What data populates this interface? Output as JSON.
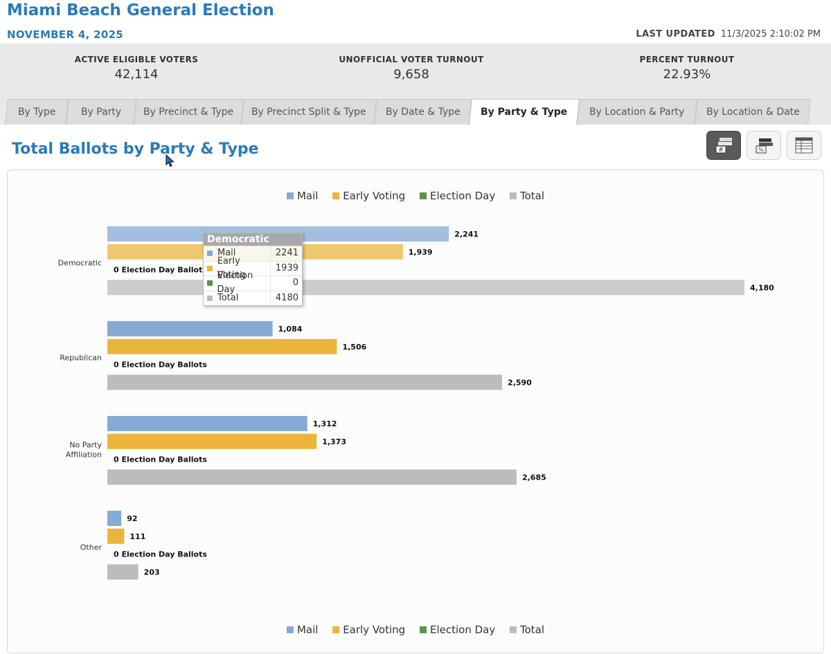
{
  "header": {
    "title": "Miami Beach General Election",
    "date": "NOVEMBER 4, 2025",
    "last_updated_label": "LAST UPDATED",
    "last_updated_value": "11/3/2025 2:10:02 PM"
  },
  "stats": {
    "eligible_label": "ACTIVE ELIGIBLE VOTERS",
    "eligible_value": "42,114",
    "turnout_label": "UNOFFICIAL VOTER TURNOUT",
    "turnout_value": "9,658",
    "percent_label": "PERCENT TURNOUT",
    "percent_value": "22.93%"
  },
  "tabs": [
    {
      "label": "By Type"
    },
    {
      "label": "By Party"
    },
    {
      "label": "By Precinct & Type"
    },
    {
      "label": "By Precinct Split & Type"
    },
    {
      "label": "By Date & Type"
    },
    {
      "label": "By Party & Type"
    },
    {
      "label": "By Location & Party"
    },
    {
      "label": "By Location & Date"
    }
  ],
  "active_tab": "By Party & Type",
  "section_title": "Total Ballots by Party & Type",
  "view_icons": [
    "count-view-icon",
    "percent-view-icon",
    "table-view-icon"
  ],
  "legend": [
    {
      "name": "Mail",
      "color": "#85abd4"
    },
    {
      "name": "Early Voting",
      "color": "#ebb53c"
    },
    {
      "name": "Election Day",
      "color": "#5f9247"
    },
    {
      "name": "Total",
      "color": "#bcbcbc"
    }
  ],
  "chart_data": {
    "type": "bar",
    "orientation": "horizontal",
    "categories": [
      "Democratic",
      "Republican",
      "No Party Affiliation",
      "Other"
    ],
    "series": [
      {
        "name": "Mail",
        "values": [
          2241,
          1084,
          1312,
          92
        ]
      },
      {
        "name": "Early Voting",
        "values": [
          1939,
          1506,
          1373,
          111
        ]
      },
      {
        "name": "Election Day",
        "values": [
          0,
          0,
          0,
          0
        ]
      },
      {
        "name": "Total",
        "values": [
          4180,
          2590,
          2685,
          203
        ]
      }
    ],
    "value_labels": [
      [
        "2,241",
        "1,939",
        "4,180"
      ],
      [
        "1,084",
        "1,506",
        "2,590"
      ],
      [
        "1,312",
        "1,373",
        "2,685"
      ],
      [
        "92",
        "111",
        "203"
      ]
    ],
    "zero_note": "0 Election Day Ballots",
    "legend_position": "top and bottom",
    "grid": false
  },
  "tooltip": {
    "title": "Democratic",
    "rows": [
      {
        "name": "Mail",
        "value": "2241",
        "color": "#85abd4"
      },
      {
        "name": "Early Voting",
        "value": "1939",
        "color": "#ebb53c"
      },
      {
        "name": "Election Day",
        "value": "0",
        "color": "#5f9247"
      },
      {
        "name": "Total",
        "value": "4180",
        "color": "#bcbcbc"
      }
    ]
  }
}
